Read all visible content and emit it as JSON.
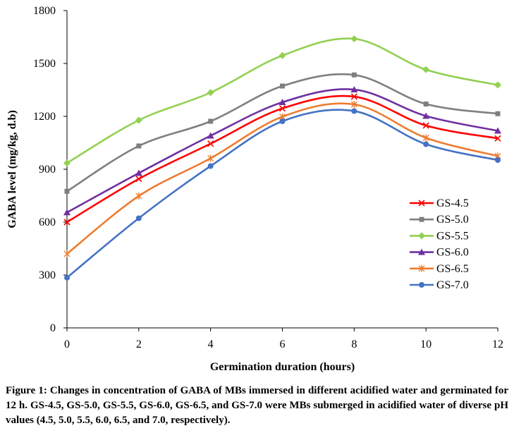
{
  "chart_data": {
    "type": "line",
    "title": "",
    "xlabel": "Germination duration (hours)",
    "ylabel": "GABA level (mg/kg, d.b)",
    "x": [
      0,
      2,
      4,
      6,
      8,
      10,
      12
    ],
    "xlim": [
      0,
      12
    ],
    "ylim": [
      0,
      1800
    ],
    "xticks": [
      "0",
      "2",
      "4",
      "6",
      "8",
      "10",
      "12"
    ],
    "yticks": [
      "0",
      "300",
      "600",
      "900",
      "1200",
      "1500",
      "1800"
    ],
    "grid": false,
    "legend_position": "right",
    "series": [
      {
        "name": "GS-4.5",
        "color": "#ff0000",
        "marker": "x",
        "values": [
          600,
          845,
          1045,
          1245,
          1312,
          1148,
          1075
        ]
      },
      {
        "name": "GS-5.0",
        "color": "#7f7f7f",
        "marker": "square",
        "values": [
          775,
          1032,
          1172,
          1372,
          1435,
          1270,
          1215
        ]
      },
      {
        "name": "GS-5.5",
        "color": "#92d050",
        "marker": "diamond",
        "values": [
          935,
          1178,
          1335,
          1545,
          1640,
          1465,
          1378
        ]
      },
      {
        "name": "GS-6.0",
        "color": "#7030a0",
        "marker": "triangle",
        "values": [
          655,
          878,
          1090,
          1280,
          1352,
          1202,
          1118
        ]
      },
      {
        "name": "GS-6.5",
        "color": "#ed7d31",
        "marker": "asterisk",
        "values": [
          420,
          748,
          962,
          1198,
          1268,
          1078,
          975
        ]
      },
      {
        "name": "GS-7.0",
        "color": "#4472c4",
        "marker": "circle",
        "values": [
          285,
          622,
          918,
          1172,
          1230,
          1042,
          952
        ]
      }
    ]
  },
  "caption": "Figure 1: Changes in concentration of GABA of MBs immersed in different acidified water and germinated for 12 h. GS-4.5, GS-5.0, GS-5.5, GS-6.0, GS-6.5, and GS-7.0 were MBs submerged in acidified water of diverse pH values (4.5, 5.0, 5.5, 6.0, 6.5, and 7.0, respectively)."
}
